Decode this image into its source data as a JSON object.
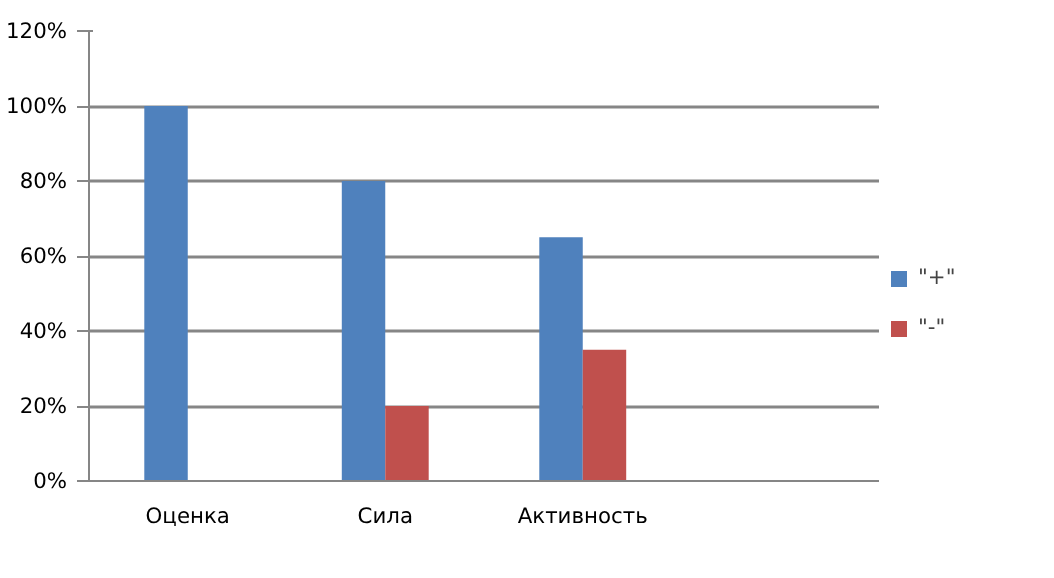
{
  "chart_data": {
    "type": "bar",
    "categories": [
      "Оценка",
      "Сила",
      "Активность",
      null
    ],
    "series": [
      {
        "name": "\"+\"",
        "color": "#4f81bd",
        "values": [
          100,
          80,
          65,
          null
        ]
      },
      {
        "name": "\"-\"",
        "color": "#c0504d",
        "values": [
          0,
          20,
          35,
          null
        ]
      }
    ],
    "ylim": [
      0,
      120
    ],
    "yticks": [
      {
        "value": 0,
        "label": "0%"
      },
      {
        "value": 20,
        "label": "20%"
      },
      {
        "value": 40,
        "label": "40%"
      },
      {
        "value": 60,
        "label": "60%"
      },
      {
        "value": 80,
        "label": "80%"
      },
      {
        "value": 100,
        "label": "100%"
      },
      {
        "value": 120,
        "label": "120%"
      }
    ],
    "grid": "y",
    "legend": "right"
  }
}
